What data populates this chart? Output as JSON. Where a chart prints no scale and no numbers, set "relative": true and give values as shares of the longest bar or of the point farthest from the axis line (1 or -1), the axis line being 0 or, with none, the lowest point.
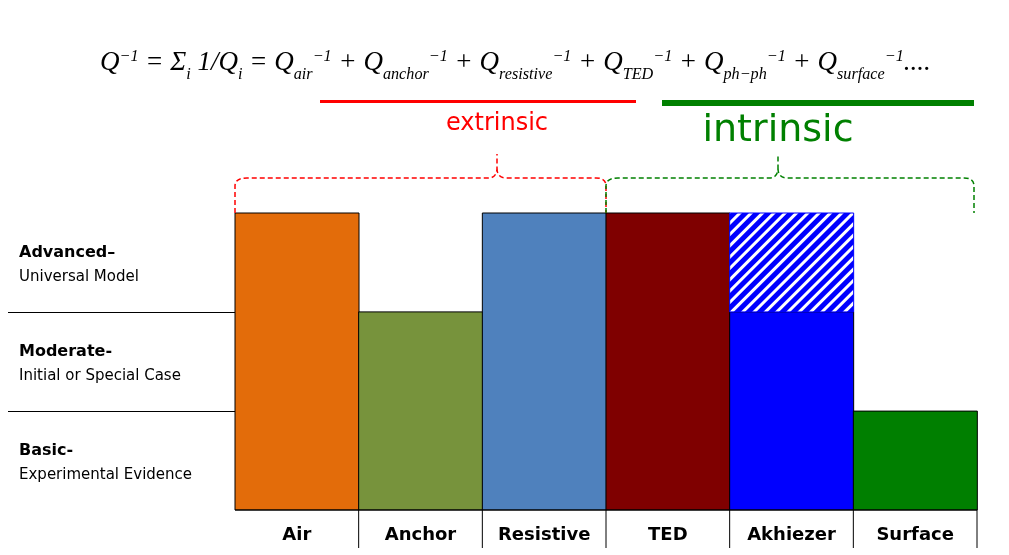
{
  "chart_data": {
    "type": "bar",
    "title": "Q$^{−1}$ = Σ$_{i}$ 1/Q$_{i}$ = Q$_{air}$$^{−1}$ + Q$_{anchor}$$^{−1}$ + Q$_{resistive}$$^{−1}$ + Q$_{TED}$$^{−1}$ + Q$_{ph−ph}$$^{−1}$ + Q$_{surface}$$^{−1}$....",
    "categories": [
      "Air",
      "Anchor",
      "Resistive",
      "TED",
      "Akhiezer",
      "Surface"
    ],
    "stacked": true,
    "relative": true,
    "series": [
      {
        "colors": [
          "#e36c0a",
          "#77933c",
          "#4f81bd",
          "#7f0000",
          "#0000ff",
          "#007f00"
        ],
        "values": [
          1,
          0.667,
          1,
          1,
          0.667,
          0.333
        ]
      },
      {
        "color": "#0000ff",
        "values": [
          null,
          null,
          null,
          null,
          0.333,
          null
        ]
      }
    ],
    "annotations": [
      "extrinsic",
      "intrinsic",
      "Advanced–\nUniversal Model",
      "Moderate-\nInitial or Special Case",
      "Basic-\nExperimental Evidence"
    ]
  }
}
